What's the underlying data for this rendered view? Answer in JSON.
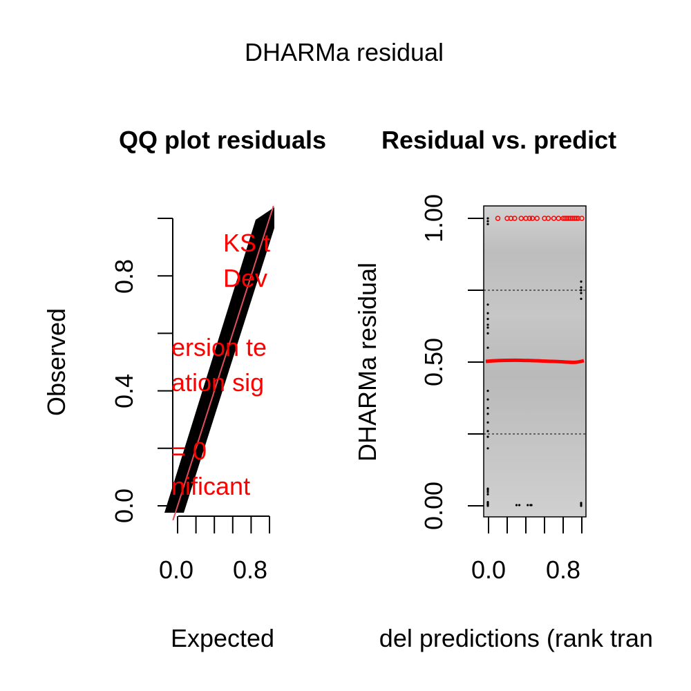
{
  "figure": {
    "title": "DHARMa residual"
  },
  "chart_data": [
    {
      "type": "scatter",
      "title": "QQ plot residuals",
      "xlabel": "Expected",
      "ylabel": "Observed",
      "x_tick_labels": [
        "0.0",
        "0.8"
      ],
      "y_tick_labels": [
        "0.0",
        "0.4",
        "0.8"
      ],
      "xlim": [
        0,
        1
      ],
      "ylim": [
        0,
        1
      ],
      "reference_line": {
        "slope": 1,
        "intercept": 0
      },
      "series": [
        {
          "x": [
            0.0,
            0.1,
            0.2,
            0.3,
            0.4,
            0.5,
            0.6,
            0.7,
            0.8,
            0.9,
            1.0
          ],
          "y": [
            0.0,
            0.1,
            0.2,
            0.3,
            0.4,
            0.5,
            0.6,
            0.7,
            0.8,
            0.9,
            1.0
          ]
        }
      ],
      "annotations": [
        "KS t",
        "Dev",
        "ersion te",
        "ation  sig",
        "= 0",
        "nificant"
      ],
      "colors": {
        "points": "#000000",
        "reference_line": "#e0505a",
        "annotation": "#ff0000"
      }
    },
    {
      "type": "scatter",
      "title": "Residual vs. predict",
      "xlabel": "del predictions (rank tran",
      "ylabel": "DHARMa residual",
      "x_tick_labels": [
        "0.0",
        "0.8"
      ],
      "y_tick_labels": [
        "0.00",
        "0.50",
        "1.00"
      ],
      "xlim": [
        0,
        1
      ],
      "ylim": [
        0,
        1
      ],
      "quantile_lines": [
        0.25,
        0.5,
        0.75
      ],
      "outliers_y": 1.0,
      "outliers_x": [
        0.1,
        0.2,
        0.24,
        0.28,
        0.35,
        0.4,
        0.44,
        0.47,
        0.52,
        0.6,
        0.64,
        0.7,
        0.75,
        0.8,
        0.82,
        0.84,
        0.86,
        0.88,
        0.9,
        0.92,
        0.94,
        0.96,
        1.0
      ],
      "edge_points_left": [
        0.0,
        0.003,
        0.006,
        0.01,
        0.013,
        0.04,
        0.048,
        0.055,
        0.06,
        0.2,
        0.24,
        0.26,
        0.29,
        0.32,
        0.34,
        0.37,
        0.4,
        0.55,
        0.6,
        0.62,
        0.63,
        0.65,
        0.67,
        0.7,
        0.98,
        0.99,
        1.0
      ],
      "edge_points_right": [
        0.0,
        0.005,
        0.01,
        0.72,
        0.74,
        0.75,
        0.76,
        0.78
      ],
      "bottom_points_x": [
        0.3,
        0.33,
        0.42,
        0.45,
        0.46
      ],
      "colors": {
        "band": "#b8b8b8",
        "points": "#000000",
        "median_line": "#ff0000",
        "outliers": "#ff0000"
      }
    }
  ]
}
